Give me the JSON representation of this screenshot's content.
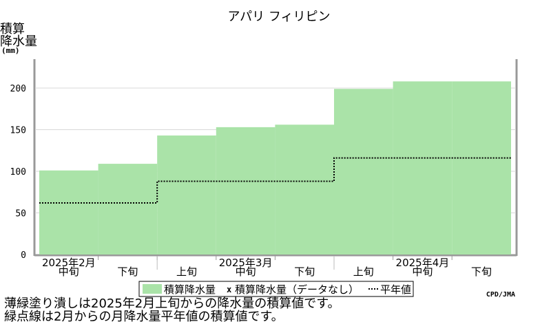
{
  "chart_data": {
    "type": "area",
    "title": "アパリ フィリピン",
    "ylabel_lines": [
      "積算",
      "降水量",
      "(mm)"
    ],
    "ylim": [
      0,
      240
    ],
    "yticks": [
      0,
      50,
      100,
      150,
      200
    ],
    "grid": true,
    "periods": [
      "2025年2月 中旬",
      "2025年2月 下旬",
      "2025年3月 上旬",
      "2025年3月 中旬",
      "2025年3月 下旬",
      "2025年4月 上旬",
      "2025年4月 中旬",
      "2025年4月 下旬"
    ],
    "period_labels": [
      "中旬",
      "下旬",
      "上旬",
      "中旬",
      "下旬",
      "上旬",
      "中旬",
      "下旬"
    ],
    "month_labels": [
      {
        "label": "2025年2月",
        "start": 0,
        "span": 2
      },
      {
        "label": "2025年3月",
        "start": 2,
        "span": 3
      },
      {
        "label": "2025年4月",
        "start": 5,
        "span": 3
      }
    ],
    "series": [
      {
        "name": "積算降水量",
        "kind": "area",
        "color": "#aae3a8",
        "values": [
          101,
          109,
          143,
          153,
          156,
          199,
          208,
          208
        ]
      },
      {
        "name": "積算降水量（データなし）",
        "kind": "marker",
        "color": "#000000",
        "values": [
          null,
          null,
          null,
          null,
          null,
          null,
          null,
          null
        ]
      },
      {
        "name": "平年値",
        "kind": "dotted-step",
        "color": "#000000",
        "values": [
          62,
          62,
          88,
          88,
          88,
          116,
          116,
          116
        ]
      }
    ],
    "legend_placement": "bottom",
    "legend": {
      "item1": "積算降水量",
      "item2_symbol": "x",
      "item2": "積算降水量（データなし）",
      "item3": "平年値"
    },
    "credit": "CPD/JMA"
  },
  "notes": {
    "line1": "薄緑塗り潰しは2025年2月上旬からの降水量の積算値です。",
    "line2": "緑点線は2月からの月降水量平年値の積算値です。"
  }
}
